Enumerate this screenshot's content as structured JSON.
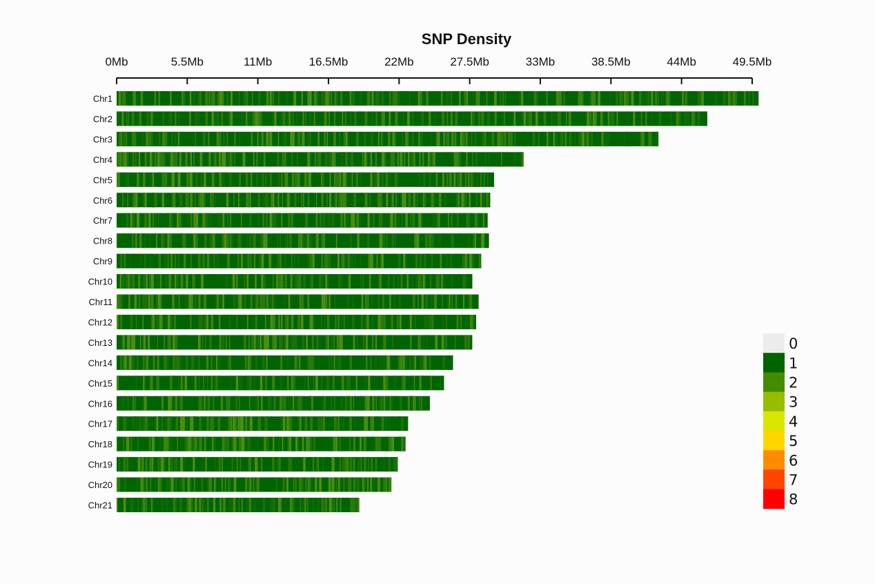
{
  "chart_data": {
    "type": "heatmap",
    "title": "SNP Density",
    "x_axis": {
      "unit": "Mb",
      "range": [
        0,
        49.5
      ],
      "ticks": [
        0,
        5.5,
        11,
        16.5,
        22,
        27.5,
        33,
        38.5,
        44,
        49.5
      ],
      "tick_labels": [
        "0Mb",
        "5.5Mb",
        "11Mb",
        "16.5Mb",
        "22Mb",
        "27.5Mb",
        "33Mb",
        "38.5Mb",
        "44Mb",
        "49.5Mb"
      ],
      "position": "top"
    },
    "chromosomes": [
      {
        "name": "Chr1",
        "length_mb": 50.0
      },
      {
        "name": "Chr2",
        "length_mb": 46.0
      },
      {
        "name": "Chr3",
        "length_mb": 42.2
      },
      {
        "name": "Chr4",
        "length_mb": 31.7
      },
      {
        "name": "Chr5",
        "length_mb": 29.4
      },
      {
        "name": "Chr6",
        "length_mb": 29.1
      },
      {
        "name": "Chr7",
        "length_mb": 28.9
      },
      {
        "name": "Chr8",
        "length_mb": 29.0
      },
      {
        "name": "Chr9",
        "length_mb": 28.4
      },
      {
        "name": "Chr10",
        "length_mb": 27.7
      },
      {
        "name": "Chr11",
        "length_mb": 28.2
      },
      {
        "name": "Chr12",
        "length_mb": 28.0
      },
      {
        "name": "Chr13",
        "length_mb": 27.7
      },
      {
        "name": "Chr14",
        "length_mb": 26.2
      },
      {
        "name": "Chr15",
        "length_mb": 25.5
      },
      {
        "name": "Chr16",
        "length_mb": 24.4
      },
      {
        "name": "Chr17",
        "length_mb": 22.7
      },
      {
        "name": "Chr18",
        "length_mb": 22.5
      },
      {
        "name": "Chr19",
        "length_mb": 21.9
      },
      {
        "name": "Chr20",
        "length_mb": 21.4
      },
      {
        "name": "Chr21",
        "length_mb": 18.9
      }
    ],
    "density_scale": [
      {
        "label": "0",
        "color": "#ececec"
      },
      {
        "label": "1",
        "color": "#006400"
      },
      {
        "label": "2",
        "color": "#448b00"
      },
      {
        "label": "3",
        "color": "#96bd00"
      },
      {
        "label": "4",
        "color": "#d9e600"
      },
      {
        "label": "5",
        "color": "#ffd700"
      },
      {
        "label": "6",
        "color": "#ff8c00"
      },
      {
        "label": "7",
        "color": "#ff4500"
      },
      {
        "label": "8",
        "color": "#ff0000"
      }
    ],
    "legend_placement": "bottom-right",
    "grid": false
  }
}
